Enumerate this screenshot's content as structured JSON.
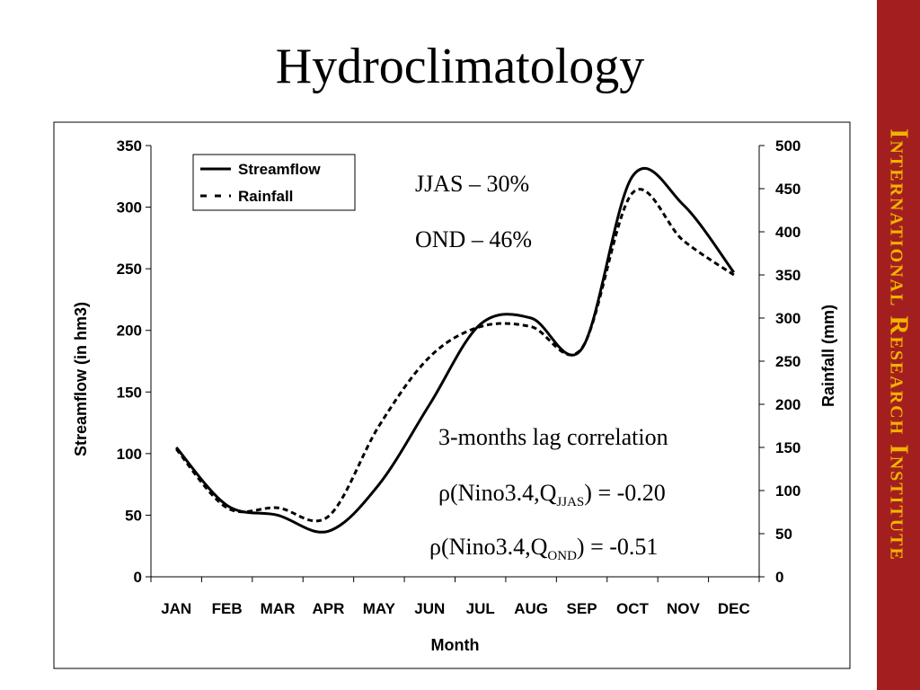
{
  "slide": {
    "title": "Hydroclimatology",
    "sidebar_text": "International Research Institute",
    "sidebar_color": "#a31f1f",
    "sidebar_text_color": "#f2b400"
  },
  "annotations": {
    "jjas": "JJAS – 30%",
    "ond": "OND – 46%",
    "lag_title": "3-months lag correlation",
    "corr1_prefix": "ρ(Nino3.4,Q",
    "corr1_sub": "JJAS",
    "corr1_suffix": ") = -0.20",
    "corr2_prefix": "ρ(Nino3.4,Q",
    "corr2_sub": "OND",
    "corr2_suffix": ") = -0.51"
  },
  "chart_data": {
    "type": "line",
    "categories": [
      "JAN",
      "FEB",
      "MAR",
      "APR",
      "MAY",
      "JUN",
      "JUL",
      "AUG",
      "SEP",
      "OCT",
      "NOV",
      "DEC"
    ],
    "xlabel": "Month",
    "ylabel": "Streamflow (in hm3)",
    "y2label": "Rainfall (mm)",
    "ylim": [
      0,
      350
    ],
    "yticks": [
      0,
      50,
      100,
      150,
      200,
      250,
      300,
      350
    ],
    "y2lim": [
      0,
      500
    ],
    "y2ticks": [
      0,
      50,
      100,
      150,
      200,
      250,
      300,
      350,
      400,
      450,
      500
    ],
    "legend_position": "top-left",
    "series": [
      {
        "name": "Streamflow",
        "axis": "left",
        "style": "solid",
        "color": "#000000",
        "values": [
          105,
          58,
          50,
          37,
          75,
          140,
          205,
          210,
          185,
          325,
          302,
          247
        ]
      },
      {
        "name": "Rainfall",
        "axis": "right",
        "style": "dashed",
        "color": "#000000",
        "values": [
          148,
          80,
          80,
          70,
          175,
          255,
          290,
          290,
          265,
          445,
          390,
          350
        ]
      }
    ]
  }
}
